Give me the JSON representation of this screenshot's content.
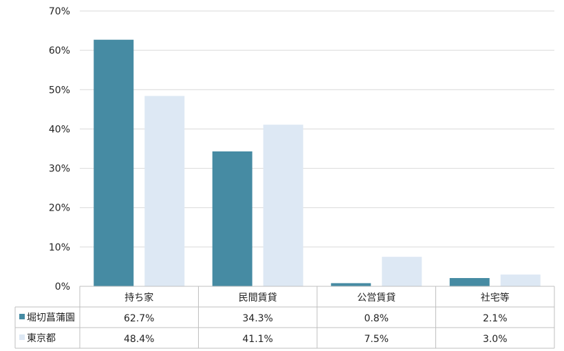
{
  "chart_data": {
    "type": "bar",
    "categories": [
      "持ち家",
      "民間賃貸",
      "公営賃貸",
      "社宅等"
    ],
    "series": [
      {
        "name": "堀切菖蒲園",
        "values": [
          62.7,
          34.3,
          0.8,
          2.1
        ],
        "labels": [
          "62.7%",
          "34.3%",
          "0.8%",
          "2.1%"
        ],
        "color": "#468ba3"
      },
      {
        "name": "東京都",
        "values": [
          48.4,
          41.1,
          7.5,
          3.0
        ],
        "labels": [
          "48.4%",
          "41.1%",
          "7.5%",
          "3.0%"
        ],
        "color": "#dde8f4"
      }
    ],
    "y_ticks": [
      "0%",
      "10%",
      "20%",
      "30%",
      "40%",
      "50%",
      "60%",
      "70%"
    ],
    "ylim": [
      0,
      70
    ],
    "grid": true,
    "legend": "data-table"
  }
}
